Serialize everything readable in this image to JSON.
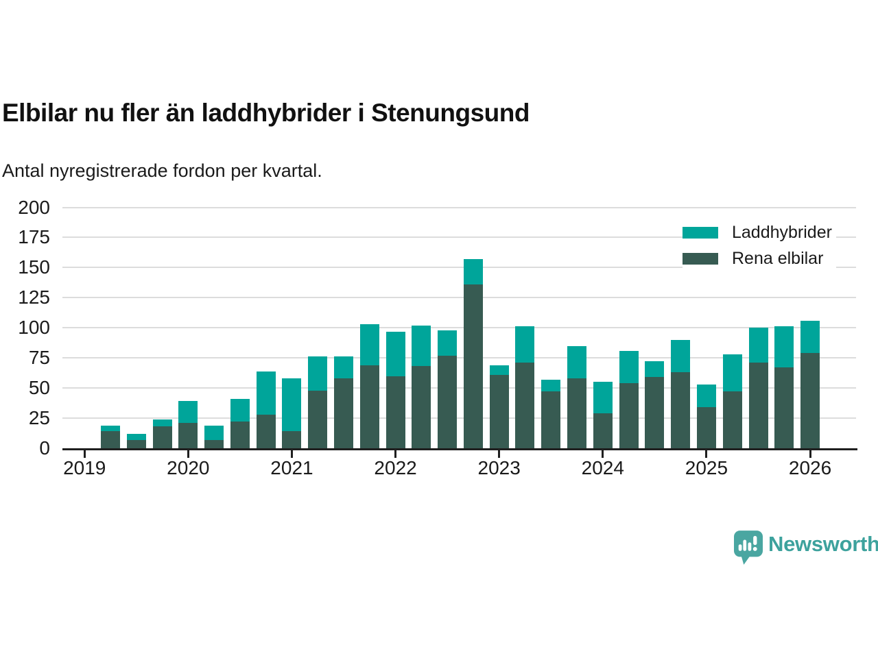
{
  "header": {
    "title": "Elbilar nu fler än laddhybrider i Stenungsund",
    "subtitle": "Antal nyregistrerade fordon per kvartal."
  },
  "chart_data": {
    "type": "bar",
    "stacked": true,
    "title": "Elbilar nu fler än laddhybrider i Stenungsund",
    "subtitle": "Antal nyregistrerade fordon per kvartal.",
    "categories": [
      "2019 Q2",
      "2019 Q3",
      "2019 Q4",
      "2020 Q1",
      "2020 Q2",
      "2020 Q3",
      "2020 Q4",
      "2021 Q1",
      "2021 Q2",
      "2021 Q3",
      "2021 Q4",
      "2022 Q1",
      "2022 Q2",
      "2022 Q3",
      "2022 Q4",
      "2023 Q1",
      "2023 Q2",
      "2023 Q3",
      "2023 Q4",
      "2024 Q1",
      "2024 Q2",
      "2024 Q3",
      "2024 Q4",
      "2025 Q1",
      "2025 Q2",
      "2025 Q3",
      "2025 Q4",
      "2026 Q1"
    ],
    "series": [
      {
        "name": "Laddhybrider",
        "color": "#00a59a",
        "values": [
          5,
          5,
          6,
          18,
          12,
          19,
          36,
          44,
          28,
          18,
          34,
          37,
          34,
          21,
          21,
          8,
          30,
          10,
          27,
          26,
          27,
          13,
          27,
          19,
          31,
          29,
          34,
          27
        ]
      },
      {
        "name": "Rena elbilar",
        "color": "#375b52",
        "values": [
          14,
          7,
          18,
          21,
          7,
          22,
          28,
          14,
          48,
          58,
          69,
          60,
          68,
          77,
          136,
          61,
          71,
          47,
          58,
          29,
          54,
          59,
          63,
          34,
          47,
          71,
          67,
          79
        ]
      }
    ],
    "stack_order_bottom_to_top": [
      "Rena elbilar",
      "Laddhybrider"
    ],
    "ylim": [
      0,
      200
    ],
    "yticks": [
      0,
      25,
      50,
      75,
      100,
      125,
      150,
      175,
      200
    ],
    "xtick_labels": [
      "2019",
      "2020",
      "2021",
      "2022",
      "2023",
      "2024",
      "2025",
      "2026"
    ],
    "grid": "horizontal",
    "legend_position": "top-right"
  },
  "colors": {
    "laddhybrider": "#00a59a",
    "rena_elbilar": "#375b52",
    "gridline": "#dcdcdc",
    "axis": "#1f1f1f",
    "brand": "#3da29d"
  },
  "footer": {
    "brand": "Newsworthy"
  }
}
